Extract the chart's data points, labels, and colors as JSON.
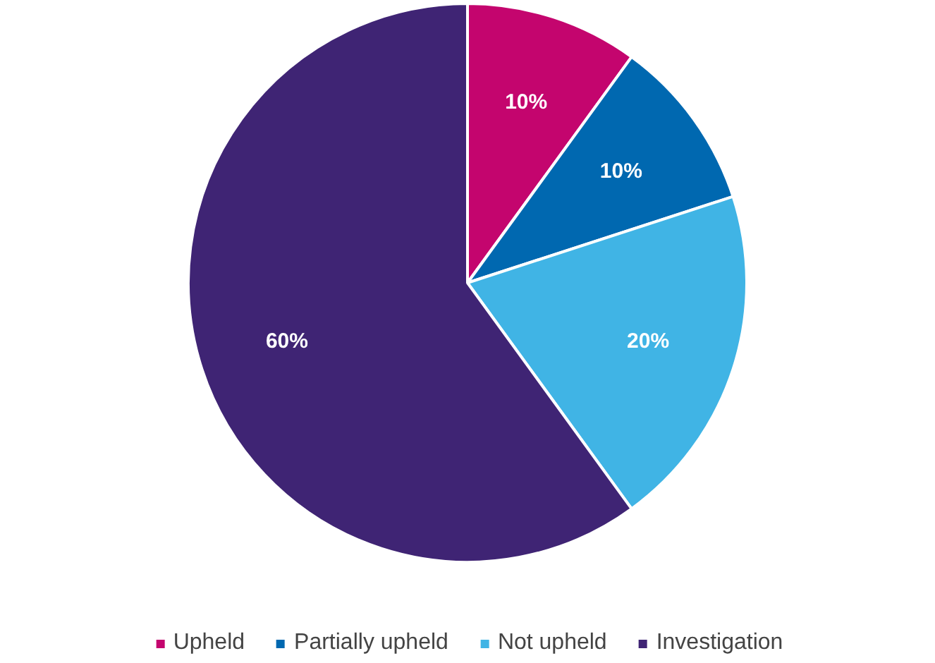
{
  "chart_data": {
    "type": "pie",
    "categories": [
      "Upheld",
      "Partially upheld",
      "Not upheld",
      "Investigation"
    ],
    "values": [
      10,
      10,
      20,
      60
    ],
    "colors": [
      "#c4056e",
      "#0068b0",
      "#40b4e5",
      "#3f2474"
    ],
    "value_labels": [
      "10%",
      "10%",
      "20%",
      "60%"
    ],
    "legend": "bottom"
  }
}
